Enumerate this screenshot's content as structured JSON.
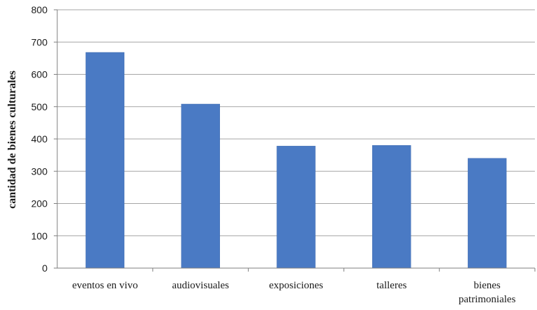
{
  "chart_data": {
    "type": "bar",
    "title": "",
    "xlabel": "",
    "ylabel": "cantidad de bienes culturales",
    "categories": [
      [
        "eventos en vivo"
      ],
      [
        "audiovisuales"
      ],
      [
        "exposiciones"
      ],
      [
        "talleres"
      ],
      [
        "bienes",
        "patrimoniales"
      ]
    ],
    "values": [
      668,
      508,
      378,
      380,
      340
    ],
    "ylim": [
      0,
      800
    ],
    "yticks": [
      0,
      100,
      200,
      300,
      400,
      500,
      600,
      700,
      800
    ],
    "grid": true,
    "legend": "none",
    "colors": {
      "bar": "#4a7ac4",
      "bar_edge": "#3f6bb0",
      "grid": "#a6a6a6",
      "axis": "#7f7f7f"
    }
  }
}
